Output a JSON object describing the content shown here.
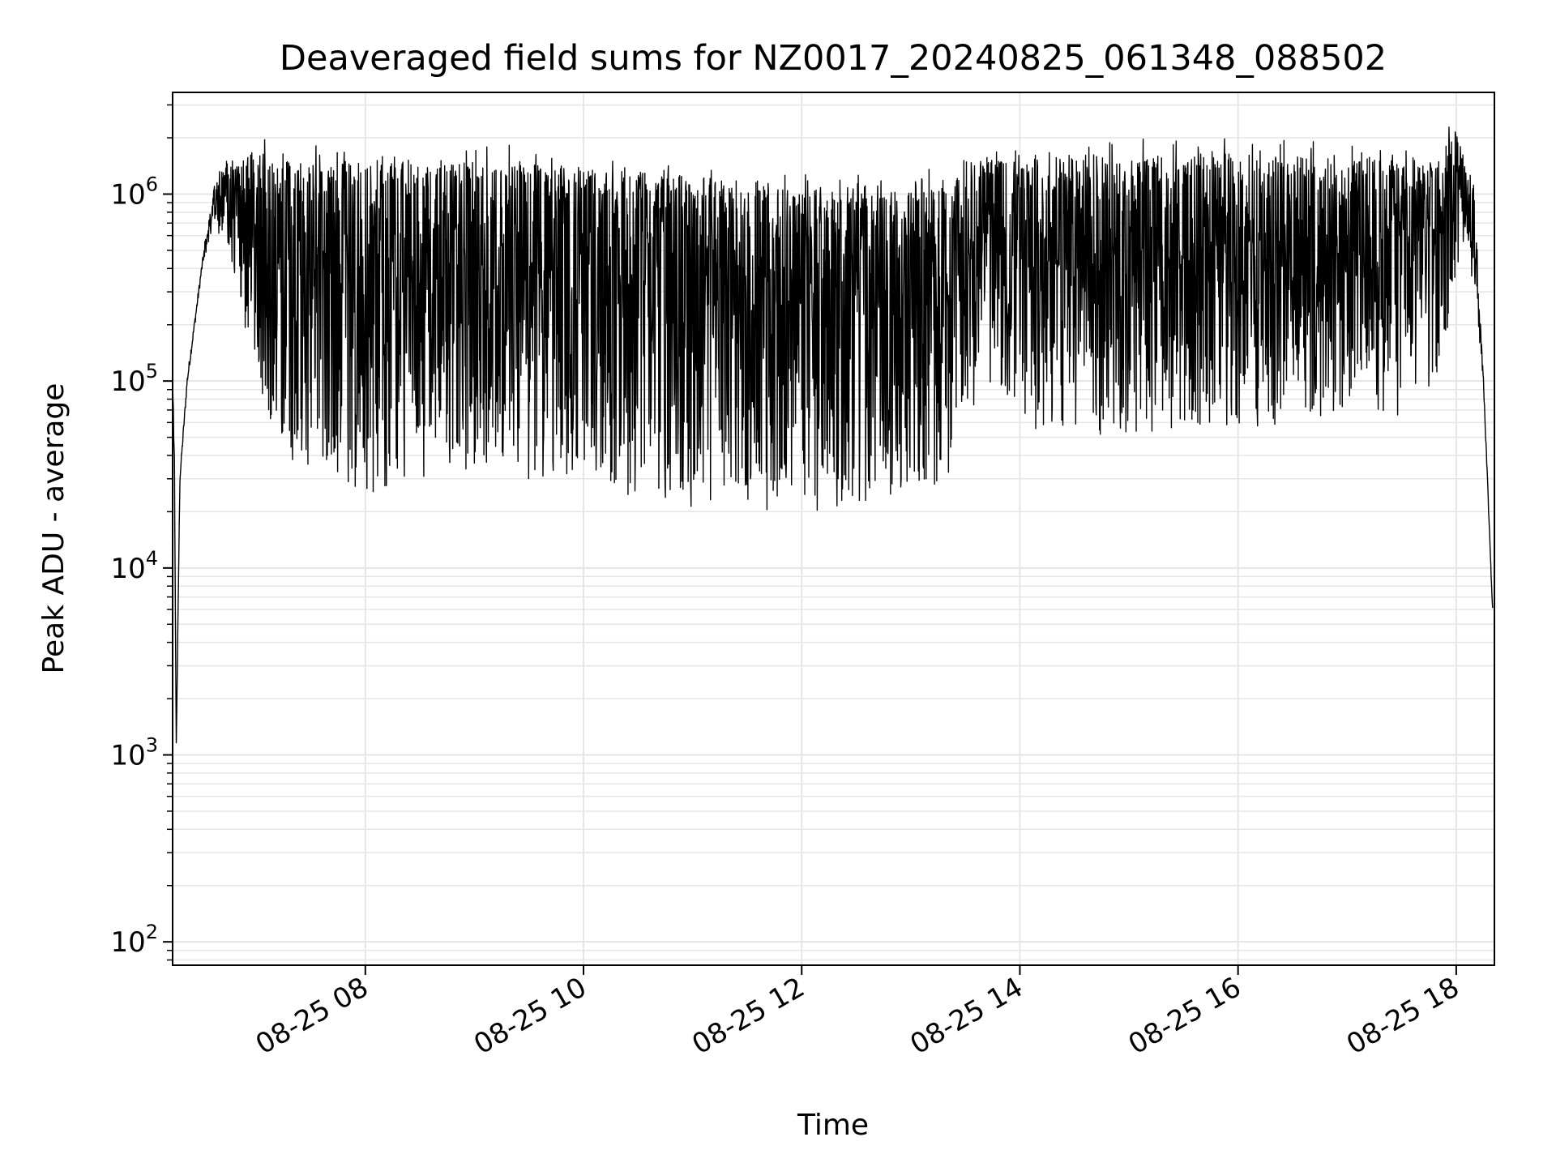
{
  "chart_data": {
    "type": "line",
    "title": "Deaveraged field sums for NZ0017_20240825_061348_088502",
    "xlabel": "Time",
    "ylabel": "Peak ADU - average",
    "x_scale": "time",
    "y_scale": "log",
    "xlim": [
      "2024-08-25 06:14",
      "2024-08-25 18:21"
    ],
    "ylim": [
      75,
      3500000
    ],
    "grid": true,
    "legend": "none",
    "line_color": "#000000",
    "grid_color": "#e5e5e5",
    "x_ticks": [
      {
        "value": "2024-08-25 08:00",
        "label": "08-25 08"
      },
      {
        "value": "2024-08-25 10:00",
        "label": "08-25 10"
      },
      {
        "value": "2024-08-25 12:00",
        "label": "08-25 12"
      },
      {
        "value": "2024-08-25 14:00",
        "label": "08-25 14"
      },
      {
        "value": "2024-08-25 16:00",
        "label": "08-25 16"
      },
      {
        "value": "2024-08-25 18:00",
        "label": "08-25 18"
      }
    ],
    "y_ticks": [
      {
        "value": 100,
        "base": "10",
        "exp": "2"
      },
      {
        "value": 1000,
        "base": "10",
        "exp": "3"
      },
      {
        "value": 10000,
        "base": "10",
        "exp": "4"
      },
      {
        "value": 100000,
        "base": "10",
        "exp": "5"
      },
      {
        "value": 1000000,
        "base": "10",
        "exp": "6"
      }
    ],
    "series": [
      {
        "envelope": {
          "comment_free": true,
          "time": [
            "2024-08-25 06:14",
            "2024-08-25 06:15",
            "2024-08-25 06:16",
            "2024-08-25 06:18",
            "2024-08-25 06:22",
            "2024-08-25 06:30",
            "2024-08-25 06:38",
            "2024-08-25 06:45",
            "2024-08-25 06:55",
            "2024-08-25 07:05",
            "2024-08-25 07:15",
            "2024-08-25 07:30",
            "2024-08-25 08:00",
            "2024-08-25 08:30",
            "2024-08-25 09:00",
            "2024-08-25 09:30",
            "2024-08-25 10:00",
            "2024-08-25 10:30",
            "2024-08-25 11:00",
            "2024-08-25 11:30",
            "2024-08-25 12:00",
            "2024-08-25 12:30",
            "2024-08-25 13:00",
            "2024-08-25 13:20",
            "2024-08-25 13:30",
            "2024-08-25 14:00",
            "2024-08-25 14:30",
            "2024-08-25 15:00",
            "2024-08-25 15:30",
            "2024-08-25 16:00",
            "2024-08-25 16:30",
            "2024-08-25 17:00",
            "2024-08-25 17:30",
            "2024-08-25 17:50",
            "2024-08-25 18:00",
            "2024-08-25 18:05",
            "2024-08-25 18:10",
            "2024-08-25 18:15",
            "2024-08-25 18:20"
          ],
          "upper": [
            100000,
            40000,
            1100,
            30000,
            100000,
            400000,
            1300000,
            1500000,
            1500000,
            1500000,
            1500000,
            1400000,
            1400000,
            1400000,
            1400000,
            1400000,
            1300000,
            1300000,
            1200000,
            1100000,
            1000000,
            1000000,
            1100000,
            1100000,
            1500000,
            1600000,
            1500000,
            1500000,
            1500000,
            1600000,
            1500000,
            1500000,
            1500000,
            1400000,
            2000000,
            1400000,
            1000000,
            100000,
            6000
          ],
          "lower": [
            100000,
            30000,
            1100,
            30000,
            100000,
            400000,
            700000,
            500000,
            150000,
            50000,
            35000,
            32000,
            25000,
            28000,
            35000,
            32000,
            28000,
            25000,
            23000,
            22000,
            21000,
            22000,
            23000,
            25000,
            70000,
            55000,
            55000,
            50000,
            55000,
            60000,
            60000,
            65000,
            60000,
            70000,
            400000,
            600000,
            300000,
            100000,
            6000
          ]
        }
      }
    ]
  }
}
